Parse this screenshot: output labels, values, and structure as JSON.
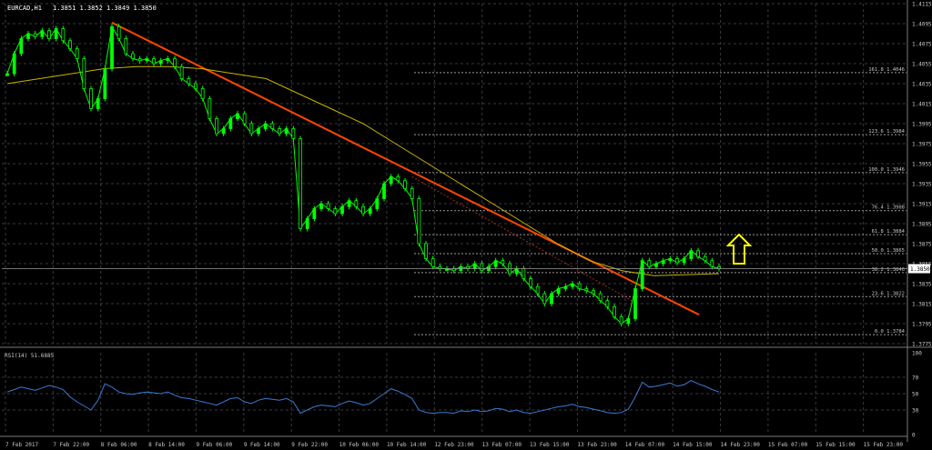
{
  "window": {
    "symbol_label": "EURCAD,H1",
    "ohlc_label": "1.3851 1.3852 1.3849 1.3850"
  },
  "colors": {
    "background": "#000000",
    "grid": "#3a3a3a",
    "axis_text": "#c8c8c8",
    "bull_candle": "#00ff00",
    "bear_candle": "#00ff00",
    "trendline": "#ff4500",
    "moving_average": "#c8b400",
    "fib_level": "#9a9a9a",
    "rsi_line": "#3a7bd5",
    "price_tag_bg": "#ffffff",
    "arrow": "#ffff00"
  },
  "chart_data": [
    {
      "type": "line",
      "panel": "price",
      "y_ticks": [
        "1.4115",
        "1.4095",
        "1.4075",
        "1.4055",
        "1.4035",
        "1.4015",
        "1.3995",
        "1.3975",
        "1.3955",
        "1.3935",
        "1.3915",
        "1.3895",
        "1.3875",
        "1.3855",
        "1.3835",
        "1.3815",
        "1.3795",
        "1.3775"
      ],
      "ylim": [
        1.3775,
        1.4115
      ],
      "current_price": "1.3850",
      "x_ticks": [
        "7 Feb 2017",
        "7 Feb 22:00",
        "8 Feb 06:00",
        "8 Feb 14:00",
        "9 Feb 06:00",
        "9 Feb 14:00",
        "9 Feb 22:00",
        "10 Feb 06:00",
        "10 Feb 14:00",
        "12 Feb 23:00",
        "13 Feb 07:00",
        "13 Feb 15:00",
        "13 Feb 23:00",
        "14 Feb 07:00",
        "14 Feb 15:00",
        "14 Feb 23:00",
        "15 Feb 07:00",
        "15 Feb 15:00",
        "15 Feb 23:00"
      ],
      "fib_levels": [
        {
          "label": "161.8 1.4046",
          "value": 1.4046
        },
        {
          "label": "123.6 1.3984",
          "value": 1.3984
        },
        {
          "label": "100.0 1.3946",
          "value": 1.3946
        },
        {
          "label": "76.4 1.3908",
          "value": 1.3908
        },
        {
          "label": "61.8 1.3884",
          "value": 1.3884
        },
        {
          "label": "50.0 1.3865",
          "value": 1.3865
        },
        {
          "label": "38.2 1.3846",
          "value": 1.3846
        },
        {
          "label": "23.6 1.3822",
          "value": 1.3822
        },
        {
          "label": "0.0 1.3784",
          "value": 1.3784
        }
      ],
      "series": [
        {
          "values": [
            1.4045,
            1.4065,
            1.408,
            1.4085,
            1.4082,
            1.4088,
            1.408,
            1.409,
            1.4078,
            1.407,
            1.406,
            1.403,
            1.401,
            1.402,
            1.405,
            1.4092,
            1.408,
            1.4065,
            1.406,
            1.4058,
            1.406,
            1.4055,
            1.4058,
            1.406,
            1.4052,
            1.404,
            1.4035,
            1.403,
            1.402,
            1.4,
            1.3985,
            1.399,
            1.4,
            1.4005,
            1.3995,
            1.3985,
            1.399,
            1.3995,
            1.399,
            1.3985,
            1.399,
            1.398,
            1.389,
            1.39,
            1.391,
            1.3915,
            1.391,
            1.3905,
            1.3912,
            1.3918,
            1.3912,
            1.3905,
            1.391,
            1.392,
            1.3935,
            1.3942,
            1.3938,
            1.393,
            1.392,
            1.3875,
            1.386,
            1.3852,
            1.385,
            1.385,
            1.3848,
            1.3852,
            1.385,
            1.3855,
            1.3848,
            1.3852,
            1.3858,
            1.3855,
            1.3845,
            1.385,
            1.384,
            1.3832,
            1.3825,
            1.3815,
            1.3825,
            1.383,
            1.3832,
            1.3835,
            1.383,
            1.3828,
            1.3825,
            1.3818,
            1.3812,
            1.3802,
            1.3795,
            1.38,
            1.383,
            1.3858,
            1.3852,
            1.3855,
            1.3858,
            1.386,
            1.3856,
            1.386,
            1.3868,
            1.3862,
            1.3858,
            1.3852,
            1.385
          ]
        }
      ],
      "moving_average": [
        1.4035,
        1.404,
        1.4045,
        1.405,
        1.4052,
        1.4052,
        1.405,
        1.4045,
        1.404,
        1.4025,
        1.401,
        1.3995,
        1.3975,
        1.3955,
        1.3935,
        1.3915,
        1.3895,
        1.3875,
        1.3858,
        1.3848,
        1.3843,
        1.3844,
        1.3845
      ]
    },
    {
      "type": "line",
      "panel": "indicator",
      "title": "RSI(14) 51.6885",
      "y_ticks": [
        "100",
        "70",
        "50",
        "30",
        "0"
      ],
      "ylim": [
        0,
        100
      ],
      "series": [
        {
          "name": "RSI(14)",
          "values": [
            52,
            55,
            58,
            56,
            54,
            57,
            60,
            58,
            55,
            46,
            40,
            35,
            30,
            42,
            62,
            58,
            52,
            50,
            49,
            51,
            52,
            51,
            50,
            52,
            48,
            45,
            44,
            42,
            40,
            38,
            36,
            40,
            44,
            45,
            40,
            38,
            42,
            44,
            43,
            42,
            44,
            40,
            26,
            30,
            34,
            36,
            35,
            34,
            38,
            41,
            39,
            36,
            38,
            44,
            50,
            56,
            53,
            49,
            44,
            30,
            27,
            26,
            27,
            27,
            26,
            29,
            28,
            30,
            28,
            29,
            32,
            31,
            28,
            30,
            27,
            26,
            28,
            30,
            32,
            34,
            35,
            37,
            34,
            33,
            31,
            29,
            27,
            26,
            27,
            31,
            46,
            64,
            58,
            59,
            61,
            63,
            59,
            61,
            66,
            62,
            59,
            55,
            52
          ]
        }
      ]
    }
  ]
}
